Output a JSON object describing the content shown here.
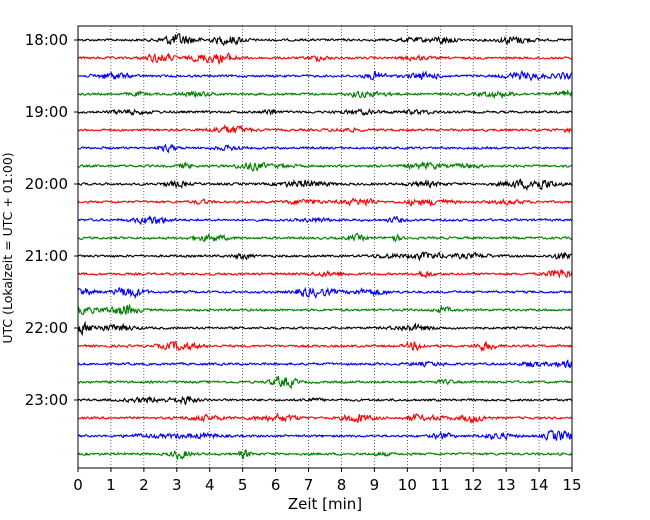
{
  "chart_data": {
    "type": "line",
    "title": "",
    "xlabel": "Zeit  [min]",
    "ylabel": "UTC (Lokalzeit = UTC + 01:00)",
    "xlim": [
      0,
      15
    ],
    "x_ticks": [
      "0",
      "1",
      "2",
      "3",
      "4",
      "5",
      "6",
      "7",
      "8",
      "9",
      "10",
      "11",
      "12",
      "13",
      "14",
      "15"
    ],
    "y_ticks": [
      "18:00",
      "19:00",
      "20:00",
      "21:00",
      "22:00",
      "23:00"
    ],
    "grid": "vertical dotted at each minute",
    "legend": "none",
    "trace_interval_min": 15,
    "start_time": "18:00",
    "trace_count": 24,
    "trace_amplitude_relative": 0.15,
    "color_cycle": [
      "#000000",
      "#ff0000",
      "#0000ff",
      "#008000"
    ]
  }
}
